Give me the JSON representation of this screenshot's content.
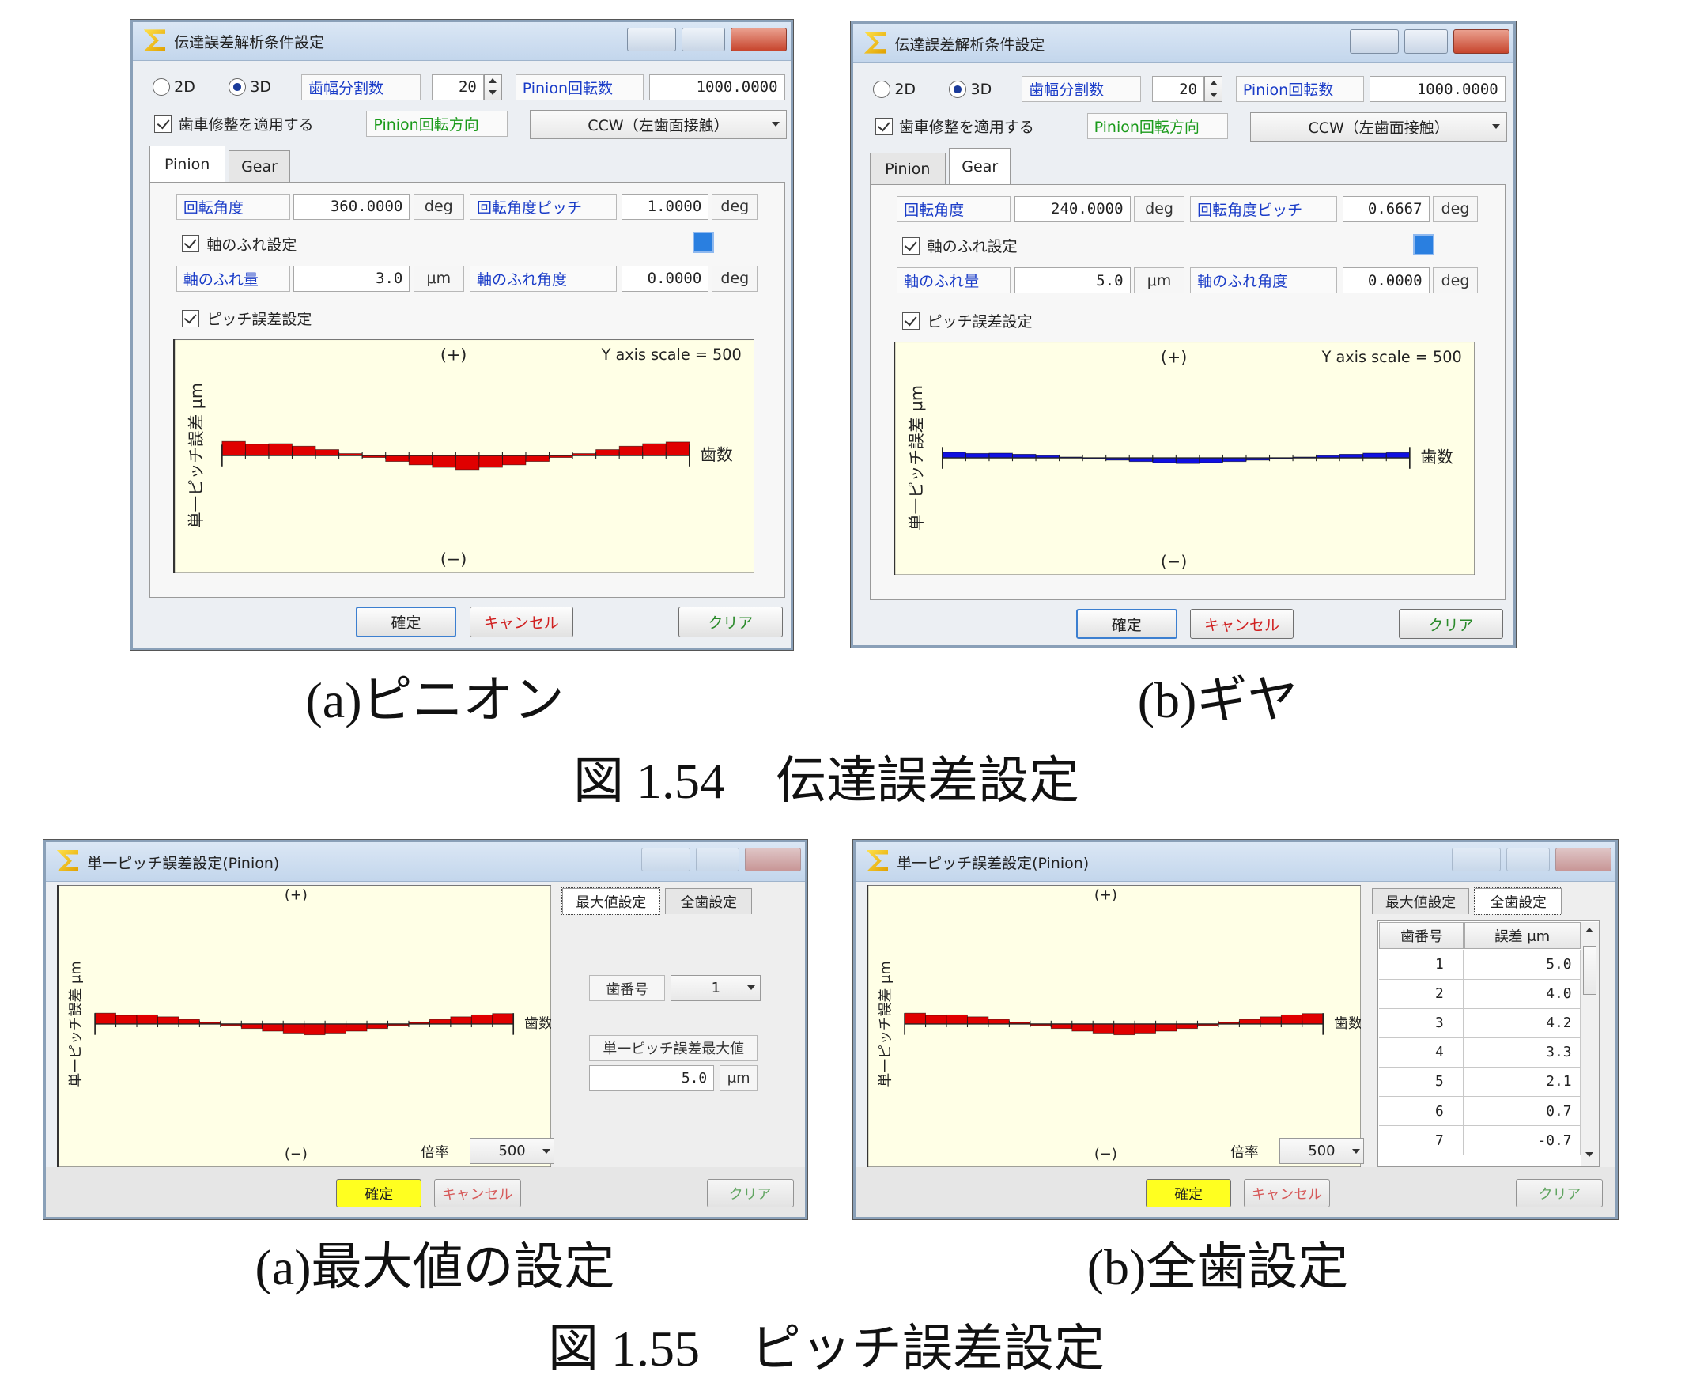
{
  "figure_154": {
    "caption": "図 1.54　伝達誤差設定",
    "windows": [
      {
        "title": "伝達誤差解析条件設定",
        "sub_caption": "(a)ピニオン",
        "mode_options": [
          "2D",
          "3D"
        ],
        "mode_selected": 1,
        "division_label": "歯幅分割数",
        "division": "20",
        "speed_label": "Pinion回転数",
        "speed": "1000.0000",
        "apply_modification": "歯車修整を適用する",
        "direction_label": "Pinion回転方向",
        "direction": "CCW（左歯面接触）",
        "tabs": [
          "Pinion",
          "Gear"
        ],
        "active_tab": 0,
        "angle_label": "回転角度",
        "angle": "360.0000",
        "angle_unit": "deg",
        "pitch_label": "回転角度ピッチ",
        "pitch": "1.0000",
        "pitch_unit": "deg",
        "runout_check": "軸のふれ設定",
        "runout_label": "軸のふれ量",
        "runout": "3.0",
        "runout_unit": "μm",
        "runout_angle_label": "軸のふれ角度",
        "runout_angle": "0.0000",
        "runout_angle_unit": "deg",
        "pitch_error_check": "ピッチ誤差設定",
        "plot": {
          "type": "bar",
          "plus": "(+)",
          "minus": "(−)",
          "scale_note": "Y axis scale = 500",
          "y_label": "単一ピッチ誤差 μm",
          "x_label": "歯数",
          "color": "#e00000",
          "values": [
            5.0,
            4.0,
            4.2,
            3.3,
            2.1,
            0.7,
            -0.7,
            -2.1,
            -3.3,
            -4.2,
            -5.0,
            -4.2,
            -3.3,
            -2.1,
            -0.7,
            0.7,
            2.1,
            3.3,
            4.2,
            4.8
          ]
        },
        "buttons": [
          "確定",
          "キャンセル",
          "クリア"
        ]
      },
      {
        "title": "伝達誤差解析条件設定",
        "sub_caption": "(b)ギヤ",
        "mode_options": [
          "2D",
          "3D"
        ],
        "mode_selected": 1,
        "division_label": "歯幅分割数",
        "division": "20",
        "speed_label": "Pinion回転数",
        "speed": "1000.0000",
        "apply_modification": "歯車修整を適用する",
        "direction_label": "Pinion回転方向",
        "direction": "CCW（左歯面接触）",
        "tabs": [
          "Pinion",
          "Gear"
        ],
        "active_tab": 1,
        "angle_label": "回転角度",
        "angle": "240.0000",
        "angle_unit": "deg",
        "pitch_label": "回転角度ピッチ",
        "pitch": "0.6667",
        "pitch_unit": "deg",
        "runout_check": "軸のふれ設定",
        "runout_label": "軸のふれ量",
        "runout": "5.0",
        "runout_unit": "μm",
        "runout_angle_label": "軸のふれ角度",
        "runout_angle": "0.0000",
        "runout_angle_unit": "deg",
        "pitch_error_check": "ピッチ誤差設定",
        "plot": {
          "type": "bar",
          "plus": "(+)",
          "minus": "(−)",
          "scale_note": "Y axis scale = 500",
          "y_label": "単一ピッチ誤差 μm",
          "x_label": "歯数",
          "color": "#1010e0",
          "values": [
            2.0,
            1.6,
            1.7,
            1.3,
            0.8,
            0.3,
            -0.3,
            -0.8,
            -1.3,
            -1.7,
            -2.0,
            -1.7,
            -1.3,
            -0.8,
            -0.3,
            0.3,
            0.8,
            1.3,
            1.7,
            1.9
          ]
        },
        "buttons": [
          "確定",
          "キャンセル",
          "クリア"
        ]
      }
    ]
  },
  "figure_155": {
    "caption": "図 1.55　ピッチ誤差設定",
    "windows": [
      {
        "title": "単一ピッチ誤差設定(Pinion)",
        "sub_caption": "(a)最大値の設定",
        "tabs": [
          "最大値設定",
          "全歯設定"
        ],
        "active_tab": 0,
        "plot": {
          "type": "bar",
          "plus": "(+)",
          "minus": "(−)",
          "y_label": "単一ピッチ誤差 μm",
          "x_label": "歯数",
          "color": "#e00000",
          "values": [
            5.0,
            4.0,
            4.2,
            3.3,
            2.1,
            0.7,
            -0.7,
            -2.1,
            -3.3,
            -4.2,
            -5.0,
            -4.2,
            -3.3,
            -2.1,
            -0.7,
            0.7,
            2.1,
            3.3,
            4.2,
            4.8
          ]
        },
        "scale_label": "倍率",
        "scale": "500",
        "tooth_label": "歯番号",
        "tooth": "1",
        "max_label": "単一ピッチ誤差最大値",
        "max": "5.0",
        "max_unit": "μm",
        "buttons": [
          "確定",
          "キャンセル",
          "クリア"
        ]
      },
      {
        "title": "単一ピッチ誤差設定(Pinion)",
        "sub_caption": "(b)全歯設定",
        "tabs": [
          "最大値設定",
          "全歯設定"
        ],
        "active_tab": 1,
        "plot": {
          "type": "bar",
          "plus": "(+)",
          "minus": "(−)",
          "y_label": "単一ピッチ誤差 μm",
          "x_label": "歯数",
          "color": "#e00000",
          "values": [
            5.0,
            4.0,
            4.2,
            3.3,
            2.1,
            0.7,
            -0.7,
            -2.1,
            -3.3,
            -4.2,
            -5.0,
            -4.2,
            -3.3,
            -2.1,
            -0.7,
            0.7,
            2.1,
            3.3,
            4.2,
            4.8
          ]
        },
        "scale_label": "倍率",
        "scale": "500",
        "table": {
          "header": [
            "歯番号",
            "誤差 μm"
          ],
          "rows": [
            [
              "1",
              "5.0"
            ],
            [
              "2",
              "4.0"
            ],
            [
              "3",
              "4.2"
            ],
            [
              "4",
              "3.3"
            ],
            [
              "5",
              "2.1"
            ],
            [
              "6",
              "0.7"
            ],
            [
              "7",
              "-0.7"
            ]
          ]
        },
        "buttons": [
          "確定",
          "キャンセル",
          "クリア"
        ]
      }
    ]
  }
}
